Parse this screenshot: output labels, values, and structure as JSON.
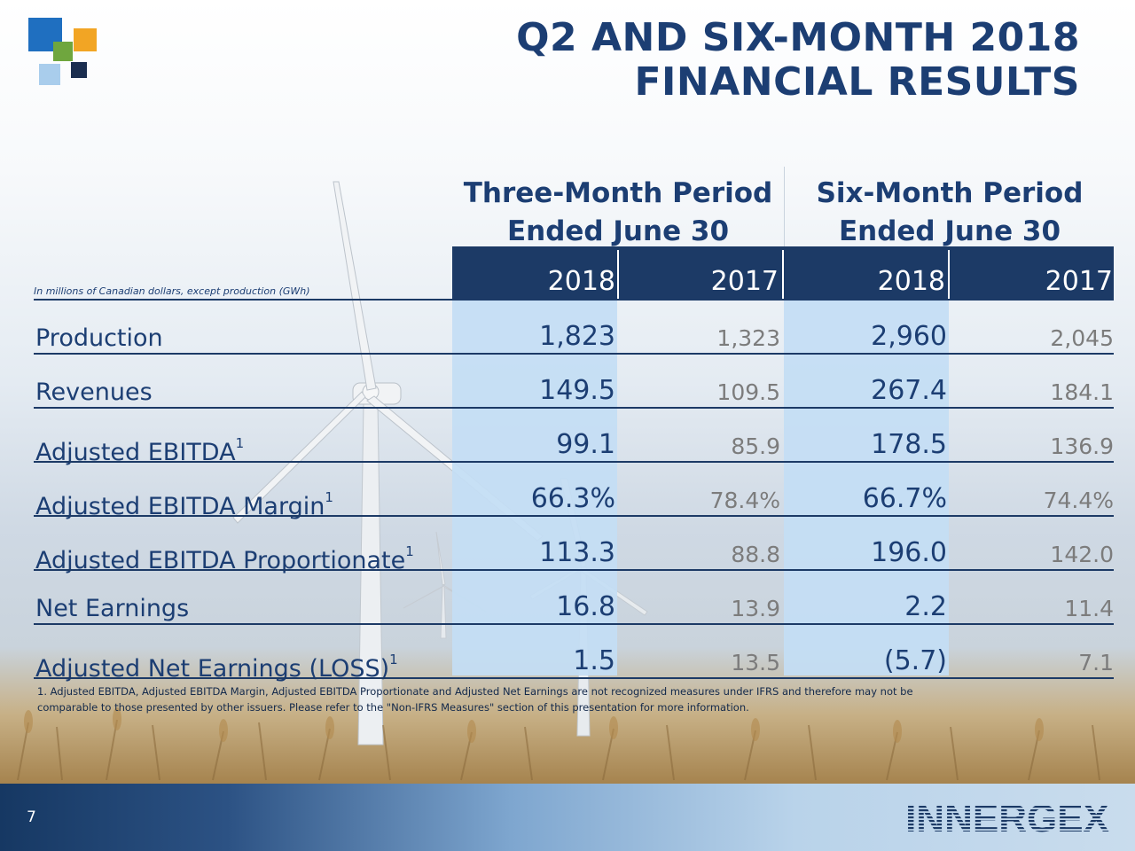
{
  "slide": {
    "title_line1": "Q2 AND SIX-MONTH 2018",
    "title_line2": "FINANCIAL RESULTS",
    "unit_note": "In millions of Canadian dollars, except production (GWh)",
    "page_number": "7",
    "brand": "INNERGEX",
    "colors": {
      "navy": "#1c3a66",
      "title_blue": "#1c3e73",
      "column_shade": "#c4def4",
      "muted_value": "#7c7c7c"
    }
  },
  "periods": [
    {
      "line1": "Three-Month Period",
      "line2": "Ended June 30",
      "years": [
        "2018",
        "2017"
      ]
    },
    {
      "line1": "Six-Month Period",
      "line2": "Ended June 30",
      "years": [
        "2018",
        "2017"
      ]
    }
  ],
  "rows": [
    {
      "label": "Production",
      "sup": "",
      "q2_2018": "1,823",
      "q2_2017": "1,323",
      "h1_2018": "2,960",
      "h1_2017": "2,045"
    },
    {
      "label": "Revenues",
      "sup": "",
      "q2_2018": "149.5",
      "q2_2017": "109.5",
      "h1_2018": "267.4",
      "h1_2017": "184.1"
    },
    {
      "label": "Adjusted EBITDA",
      "sup": "1",
      "q2_2018": "99.1",
      "q2_2017": "85.9",
      "h1_2018": "178.5",
      "h1_2017": "136.9"
    },
    {
      "label": "Adjusted EBITDA Margin",
      "sup": "1",
      "q2_2018": "66.3%",
      "q2_2017": "78.4%",
      "h1_2018": "66.7%",
      "h1_2017": "74.4%"
    },
    {
      "label": "Adjusted EBITDA Proportionate",
      "sup": "1",
      "q2_2018": "113.3",
      "q2_2017": "88.8",
      "h1_2018": "196.0",
      "h1_2017": "142.0"
    },
    {
      "label": "Net Earnings",
      "sup": "",
      "q2_2018": "16.8",
      "q2_2017": "13.9",
      "h1_2018": "2.2",
      "h1_2017": "11.4"
    },
    {
      "label": "Adjusted Net Earnings (LOSS)",
      "sup": "1",
      "q2_2018": "1.5",
      "q2_2017": "13.5",
      "h1_2018": "(5.7)",
      "h1_2017": "7.1"
    }
  ],
  "footnote": {
    "line1": "1. Adjusted EBITDA, Adjusted EBITDA Margin, Adjusted EBITDA Proportionate and Adjusted Net Earnings are not recognized measures under IFRS and therefore may not be",
    "line2": "comparable to those presented by other issuers. Please refer to the \"Non-IFRS Measures\" section of this presentation for more information."
  }
}
